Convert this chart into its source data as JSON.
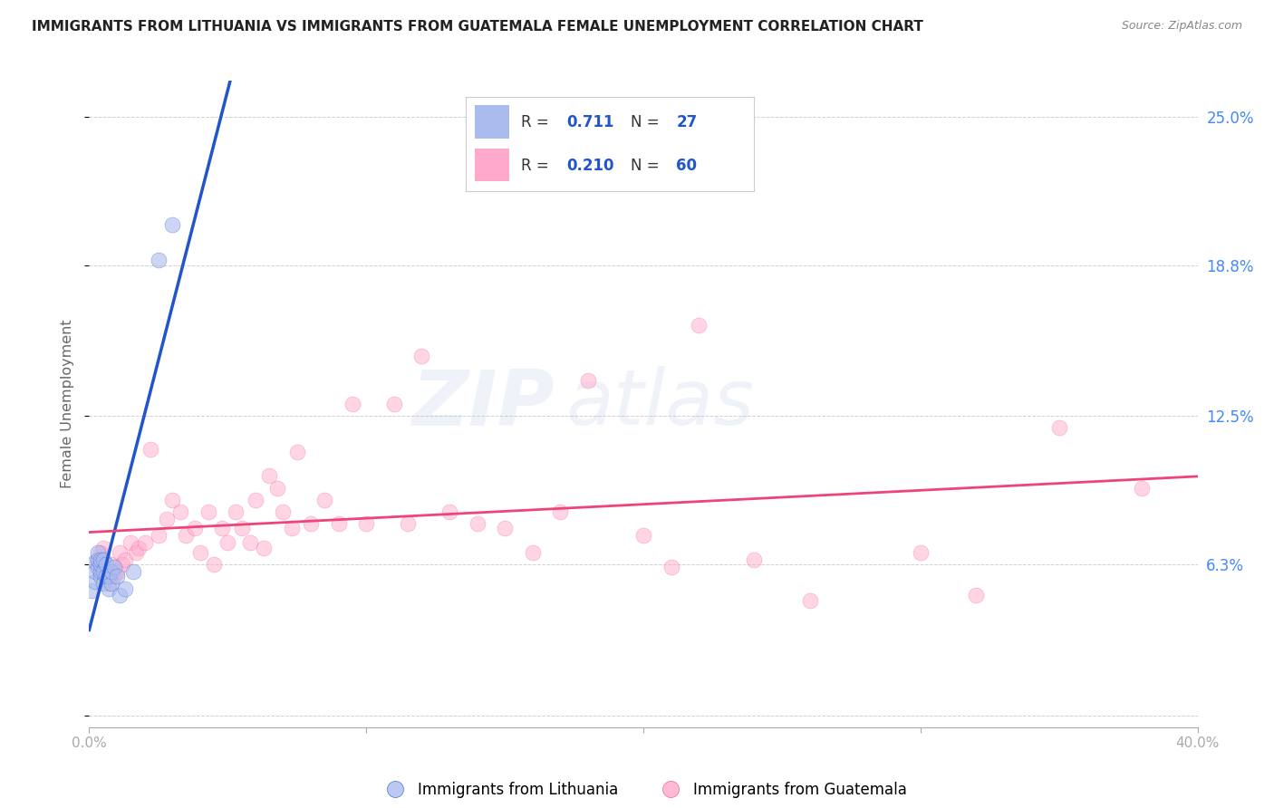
{
  "title": "IMMIGRANTS FROM LITHUANIA VS IMMIGRANTS FROM GUATEMALA FEMALE UNEMPLOYMENT CORRELATION CHART",
  "source": "Source: ZipAtlas.com",
  "ylabel": "Female Unemployment",
  "xlim": [
    0.0,
    0.4
  ],
  "ylim": [
    -0.005,
    0.265
  ],
  "right_yticks": [
    0.0,
    0.063,
    0.125,
    0.188,
    0.25
  ],
  "right_yticklabels": [
    "",
    "6.3%",
    "12.5%",
    "18.8%",
    "25.0%"
  ],
  "xticks": [
    0.0,
    0.1,
    0.2,
    0.3,
    0.4
  ],
  "xticklabels": [
    "0.0%",
    "",
    "",
    "",
    "40.0%"
  ],
  "lithuania_color": "#aabbee",
  "guatemala_color": "#ffaacc",
  "lithuania_line_color": "#2255cc",
  "guatemala_line_color": "#ee4477",
  "legend_box_color": "#aabbee",
  "legend_text_color": "#2255cc",
  "watermark": "ZIPatlas",
  "lit_x": [
    0.001,
    0.002,
    0.002,
    0.002,
    0.003,
    0.003,
    0.003,
    0.004,
    0.004,
    0.004,
    0.004,
    0.005,
    0.005,
    0.005,
    0.006,
    0.006,
    0.007,
    0.007,
    0.008,
    0.008,
    0.009,
    0.01,
    0.011,
    0.013,
    0.016,
    0.025,
    0.03
  ],
  "lit_y": [
    0.052,
    0.056,
    0.06,
    0.064,
    0.062,
    0.065,
    0.068,
    0.058,
    0.06,
    0.063,
    0.065,
    0.055,
    0.06,
    0.065,
    0.058,
    0.063,
    0.053,
    0.058,
    0.055,
    0.06,
    0.062,
    0.058,
    0.05,
    0.053,
    0.06,
    0.19,
    0.205
  ],
  "guat_x": [
    0.003,
    0.004,
    0.005,
    0.006,
    0.007,
    0.008,
    0.009,
    0.01,
    0.011,
    0.012,
    0.013,
    0.015,
    0.017,
    0.018,
    0.02,
    0.022,
    0.025,
    0.028,
    0.03,
    0.033,
    0.035,
    0.038,
    0.04,
    0.043,
    0.045,
    0.048,
    0.05,
    0.053,
    0.055,
    0.058,
    0.06,
    0.063,
    0.065,
    0.068,
    0.07,
    0.073,
    0.075,
    0.08,
    0.085,
    0.09,
    0.095,
    0.1,
    0.11,
    0.115,
    0.12,
    0.13,
    0.14,
    0.15,
    0.16,
    0.17,
    0.18,
    0.2,
    0.21,
    0.22,
    0.24,
    0.26,
    0.3,
    0.32,
    0.35,
    0.38
  ],
  "guat_y": [
    0.065,
    0.068,
    0.07,
    0.06,
    0.055,
    0.063,
    0.058,
    0.06,
    0.068,
    0.063,
    0.065,
    0.072,
    0.068,
    0.07,
    0.072,
    0.111,
    0.075,
    0.082,
    0.09,
    0.085,
    0.075,
    0.078,
    0.068,
    0.085,
    0.063,
    0.078,
    0.072,
    0.085,
    0.078,
    0.072,
    0.09,
    0.07,
    0.1,
    0.095,
    0.085,
    0.078,
    0.11,
    0.08,
    0.09,
    0.08,
    0.13,
    0.08,
    0.13,
    0.08,
    0.15,
    0.085,
    0.08,
    0.078,
    0.068,
    0.085,
    0.14,
    0.075,
    0.062,
    0.163,
    0.065,
    0.048,
    0.068,
    0.05,
    0.12,
    0.095
  ]
}
